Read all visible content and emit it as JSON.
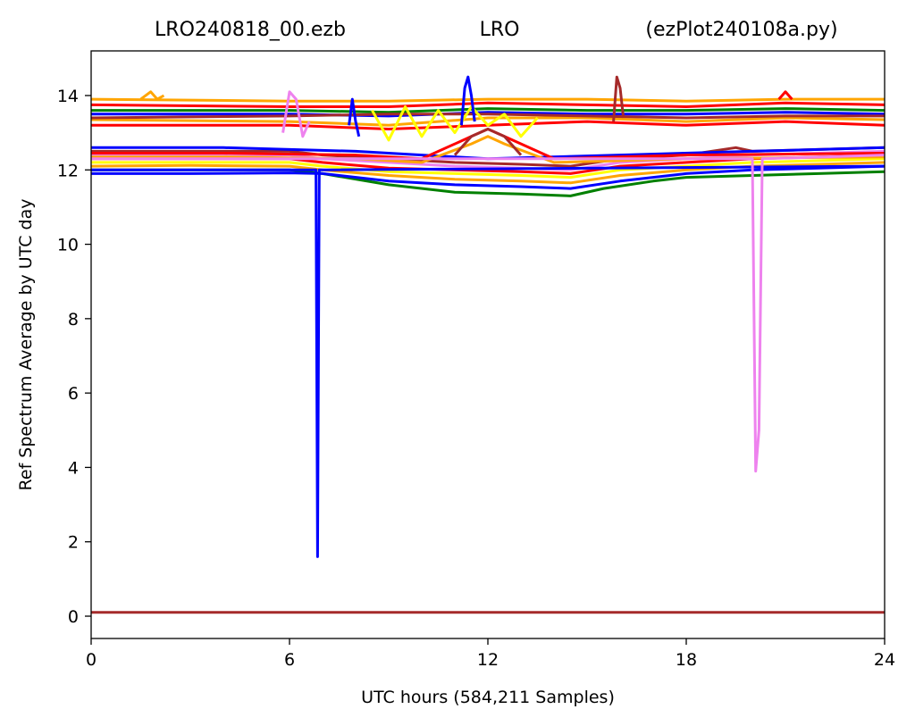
{
  "title": {
    "left": "LRO240818_00.ezb",
    "center": "LRO",
    "right": "(ezPlot240108a.py)"
  },
  "chart_data": {
    "type": "line",
    "xlabel": "UTC hours  (584,211 Samples)",
    "ylabel": "Ref Spectrum Average by UTC day",
    "xlim": [
      0,
      24
    ],
    "ylim": [
      -0.6,
      15.2
    ],
    "xticks": [
      0,
      6,
      12,
      18,
      24
    ],
    "xtick_labels": [
      "0",
      "6",
      "12",
      "18",
      "24"
    ],
    "yticks": [
      0,
      2,
      4,
      6,
      8,
      10,
      12,
      14
    ],
    "ytick_labels": [
      "0",
      "2",
      "4",
      "6",
      "8",
      "10",
      "12",
      "14"
    ],
    "grid": false,
    "legend": "none",
    "colors": {
      "green": "#008000",
      "blue": "#0000ff",
      "red": "#ff0000",
      "orange": "#ffa500",
      "yellow": "#ffff00",
      "violet": "#ee82ee",
      "brown": "#a52a2a"
    },
    "series": [
      {
        "color": "#a52a2a",
        "x": [
          0,
          24
        ],
        "y": [
          0.1,
          0.1
        ]
      },
      {
        "color": "#008000",
        "x": [
          0,
          3,
          6,
          7,
          9,
          11,
          13,
          14.5,
          15.5,
          17,
          18,
          20,
          22,
          24
        ],
        "y": [
          12.0,
          12.0,
          12.0,
          11.9,
          11.6,
          11.4,
          11.35,
          11.3,
          11.5,
          11.7,
          11.8,
          11.85,
          11.9,
          11.95
        ]
      },
      {
        "color": "#0000ff",
        "x": [
          0,
          3,
          6,
          7,
          9,
          11,
          13,
          14.5,
          16,
          18,
          20,
          22,
          24
        ],
        "y": [
          11.9,
          11.9,
          11.92,
          11.9,
          11.7,
          11.6,
          11.55,
          11.5,
          11.7,
          11.9,
          12.0,
          12.05,
          12.1
        ]
      },
      {
        "color": "#ffa500",
        "x": [
          0,
          3,
          6,
          7,
          9,
          11,
          13,
          14.5,
          16,
          18,
          20,
          22,
          24
        ],
        "y": [
          12.1,
          12.12,
          12.1,
          12.0,
          11.85,
          11.75,
          11.7,
          11.65,
          11.85,
          12.0,
          12.1,
          12.15,
          12.2
        ]
      },
      {
        "color": "#ffff00",
        "x": [
          0,
          3,
          6,
          7,
          9,
          11,
          13,
          14.5,
          16,
          18,
          20,
          22,
          24
        ],
        "y": [
          12.2,
          12.2,
          12.2,
          12.1,
          11.95,
          11.9,
          11.85,
          11.8,
          12.0,
          12.1,
          12.2,
          12.25,
          12.3
        ]
      },
      {
        "color": "#ff0000",
        "x": [
          0,
          3,
          6,
          7,
          9,
          11,
          13,
          14.5,
          16,
          18,
          20,
          22,
          24
        ],
        "y": [
          12.3,
          12.3,
          12.3,
          12.2,
          12.05,
          12.0,
          11.95,
          11.9,
          12.1,
          12.2,
          12.3,
          12.35,
          12.4
        ]
      },
      {
        "color": "#ee82ee",
        "x": [
          0,
          3,
          6,
          7,
          9,
          11,
          13,
          14.5,
          16,
          18,
          20,
          22,
          24
        ],
        "y": [
          12.4,
          12.4,
          12.4,
          12.3,
          12.2,
          12.1,
          12.05,
          12.0,
          12.2,
          12.3,
          12.4,
          12.45,
          12.5
        ]
      },
      {
        "color": "#a52a2a",
        "x": [
          0,
          3,
          6,
          7,
          9,
          11,
          13,
          14.5,
          16,
          18,
          19.5,
          20,
          22,
          24
        ],
        "y": [
          12.5,
          12.5,
          12.5,
          12.4,
          12.3,
          12.2,
          12.15,
          12.1,
          12.3,
          12.4,
          12.6,
          12.5,
          12.55,
          12.6
        ]
      },
      {
        "color": "#0000ff",
        "x": [
          0,
          4,
          8,
          12,
          16,
          20,
          24
        ],
        "y": [
          12.6,
          12.6,
          12.5,
          12.3,
          12.4,
          12.5,
          12.6
        ]
      },
      {
        "color": "#ff0000",
        "x": [
          0,
          4,
          8,
          10,
          11.5,
          12,
          12.5,
          14,
          18,
          24
        ],
        "y": [
          12.45,
          12.45,
          12.4,
          12.3,
          12.9,
          13.1,
          12.9,
          12.3,
          12.4,
          12.45
        ]
      },
      {
        "color": "#ffa500",
        "x": [
          0,
          4,
          8,
          10,
          11.5,
          12,
          12.5,
          14,
          18,
          24
        ],
        "y": [
          12.35,
          12.35,
          12.3,
          12.2,
          12.7,
          12.9,
          12.7,
          12.2,
          12.3,
          12.35
        ]
      },
      {
        "color": "#a52a2a",
        "x": [
          11,
          11.5,
          12,
          12.5,
          13
        ],
        "y": [
          12.4,
          12.9,
          13.1,
          12.9,
          12.4
        ]
      },
      {
        "color": "#ff0000",
        "x": [
          0,
          6,
          9,
          12,
          15,
          18,
          21,
          24
        ],
        "y": [
          13.2,
          13.2,
          13.1,
          13.2,
          13.3,
          13.2,
          13.3,
          13.2
        ]
      },
      {
        "color": "#ffa500",
        "x": [
          0,
          6,
          9,
          12,
          15,
          18,
          21,
          24
        ],
        "y": [
          13.35,
          13.3,
          13.2,
          13.4,
          13.4,
          13.3,
          13.4,
          13.35
        ]
      },
      {
        "color": "#0000ff",
        "x": [
          0,
          6,
          9,
          12,
          15,
          18,
          21,
          24
        ],
        "y": [
          13.5,
          13.5,
          13.45,
          13.55,
          13.5,
          13.5,
          13.55,
          13.5
        ]
      },
      {
        "color": "#008000",
        "x": [
          0,
          6,
          9,
          12,
          15,
          18,
          21,
          24
        ],
        "y": [
          13.6,
          13.6,
          13.55,
          13.65,
          13.6,
          13.6,
          13.65,
          13.6
        ]
      },
      {
        "color": "#ff0000",
        "x": [
          0,
          6,
          9,
          12,
          15,
          18,
          21,
          24
        ],
        "y": [
          13.75,
          13.7,
          13.7,
          13.8,
          13.75,
          13.7,
          13.8,
          13.75
        ]
      },
      {
        "color": "#ffa500",
        "x": [
          0,
          6,
          9,
          12,
          15,
          18,
          21,
          24
        ],
        "y": [
          13.9,
          13.85,
          13.85,
          13.9,
          13.9,
          13.85,
          13.9,
          13.9
        ]
      },
      {
        "color": "#a52a2a",
        "x": [
          0,
          6,
          9,
          12,
          15,
          18,
          21,
          24
        ],
        "y": [
          13.4,
          13.45,
          13.5,
          13.5,
          13.45,
          13.4,
          13.45,
          13.45
        ]
      },
      {
        "color": "#0000ff",
        "x": [
          0,
          6,
          6.8,
          6.85,
          6.9,
          7.0,
          24
        ],
        "y": [
          12.0,
          12.0,
          12.0,
          1.6,
          12.0,
          12.0,
          12.1
        ]
      },
      {
        "color": "#ee82ee",
        "x": [
          0,
          20,
          20.1,
          20.2,
          20.3,
          24
        ],
        "y": [
          12.3,
          12.3,
          3.9,
          5.0,
          12.3,
          12.4
        ]
      },
      {
        "color": "#ffff00",
        "x": [
          8.5,
          9,
          9.5,
          10,
          10.5,
          11,
          11.5,
          12,
          12.5,
          13,
          13.5
        ],
        "y": [
          13.6,
          12.8,
          13.7,
          12.9,
          13.6,
          13.0,
          13.7,
          13.2,
          13.5,
          12.9,
          13.4
        ]
      },
      {
        "color": "#0000ff",
        "x": [
          11.2,
          11.3,
          11.4,
          11.5,
          11.6
        ],
        "y": [
          13.2,
          14.2,
          14.5,
          14.0,
          13.3
        ]
      },
      {
        "color": "#a52a2a",
        "x": [
          15.8,
          15.9,
          16.0,
          16.1
        ],
        "y": [
          13.3,
          14.5,
          14.2,
          13.4
        ]
      },
      {
        "color": "#ee82ee",
        "x": [
          5.8,
          6.0,
          6.2,
          6.4,
          6.6
        ],
        "y": [
          13.0,
          14.1,
          13.9,
          12.9,
          13.3
        ]
      },
      {
        "color": "#ffa500",
        "x": [
          1.5,
          1.8,
          2.0,
          2.2
        ],
        "y": [
          13.9,
          14.1,
          13.9,
          14.0
        ]
      },
      {
        "color": "#0000ff",
        "x": [
          7.8,
          7.9,
          8.0,
          8.1
        ],
        "y": [
          13.2,
          13.9,
          13.3,
          12.9
        ]
      },
      {
        "color": "#ff0000",
        "x": [
          20.8,
          21.0,
          21.2
        ],
        "y": [
          13.9,
          14.1,
          13.9
        ]
      }
    ]
  }
}
